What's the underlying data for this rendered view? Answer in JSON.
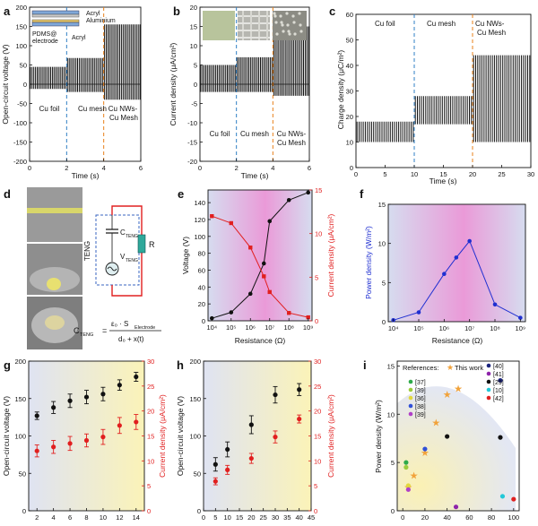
{
  "panel_letters": [
    "a",
    "b",
    "c",
    "d",
    "e",
    "f",
    "g",
    "h",
    "i"
  ],
  "colors": {
    "red": "#e11f1f",
    "blue": "#1f2fd1",
    "black": "#111111",
    "dash_blue": "#2f7fc4",
    "dash_orange": "#e8801a",
    "star": "#f1a23a"
  },
  "panel_a": {
    "ylabel": "Open-circuit voltage (V)",
    "xlabel": "Time (s)",
    "regions": [
      "Cu foil",
      "Cu mesh",
      "Cu NWs-",
      "Cu Mesh"
    ],
    "legend": [
      "Acryl",
      "Aluminium",
      "PDMS@",
      "electrode",
      "Acryl"
    ],
    "yticks": [
      "200",
      "150",
      "100",
      "50",
      "0",
      "-50",
      "-100",
      "-150",
      "-200"
    ],
    "xticks": [
      "0",
      "2",
      "4",
      "6"
    ]
  },
  "panel_b": {
    "ylabel": "Current density (μA/cm²)",
    "xlabel": "Time (s)",
    "regions": [
      "Cu foil",
      "Cu mesh",
      "Cu NWs-",
      "Cu Mesh"
    ],
    "yticks": [
      "20",
      "15",
      "10",
      "5",
      "0",
      "-5",
      "-10",
      "-15",
      "-20"
    ],
    "xticks": [
      "0",
      "2",
      "4",
      "6"
    ]
  },
  "panel_c": {
    "ylabel": "Charge density (μC/m²)",
    "xlabel": "Time (s)",
    "regions": [
      "Cu foil",
      "Cu mesh",
      "Cu NWs-",
      "Cu Mesh"
    ],
    "yticks": [
      "60",
      "50",
      "40",
      "30",
      "20",
      "10",
      "0"
    ],
    "xticks": [
      "0",
      "5",
      "10",
      "15",
      "20",
      "25",
      "30"
    ]
  },
  "panel_d": {
    "teng": "TENG",
    "c_label": "C",
    "c_sub": "TENG",
    "v_label": "V",
    "v_sub": "TENG",
    "r_label": "R",
    "eq_lhs": "C",
    "eq_lhs_sub": "TENG",
    "eq_eq": "=",
    "eq_num": "ε₀ · S",
    "eq_num_sub": "Electrode",
    "eq_den": "d₀ + x(t)"
  },
  "panel_e": {
    "xlabel": "Resistance (Ω)",
    "ylabel_left": "Voltage (V)",
    "ylabel_right": "Current density (μA/cm²)",
    "xticks": [
      "10⁴",
      "10⁵",
      "10⁶",
      "10⁷",
      "10⁸",
      "10⁹"
    ],
    "yticks_left": [
      "0",
      "20",
      "40",
      "60",
      "80",
      "100",
      "120",
      "140"
    ],
    "yticks_right": [
      "0",
      "5",
      "10",
      "15"
    ]
  },
  "panel_f": {
    "xlabel": "Resistance (Ω)",
    "ylabel": "Power density (W/m²)",
    "xticks": [
      "10⁴",
      "10⁵",
      "10⁶",
      "10⁷",
      "10⁸",
      "10⁹"
    ],
    "yticks": [
      "0",
      "5",
      "10",
      "15"
    ]
  },
  "panel_g": {
    "xlabel": "Frequency (Hz)",
    "ylabel_left": "Open-circuit voltage (V)",
    "ylabel_right": "Current density (μA/cm²)",
    "xticks": [
      "2",
      "4",
      "6",
      "8",
      "10",
      "12",
      "14"
    ],
    "yticks_left": [
      "0",
      "50",
      "100",
      "150",
      "200"
    ],
    "yticks_right": [
      "0",
      "5",
      "10",
      "15",
      "20",
      "25",
      "30"
    ]
  },
  "panel_h": {
    "xlabel": "Force (N)",
    "ylabel_left": "Open-circuit voltage (V)",
    "ylabel_right": "Current density (μA/cm²)",
    "xticks": [
      "0",
      "5",
      "10",
      "15",
      "20",
      "25",
      "30",
      "35",
      "40",
      "45"
    ],
    "yticks_left": [
      "0",
      "50",
      "100",
      "150",
      "200"
    ],
    "yticks_right": [
      "0",
      "5",
      "10",
      "15",
      "20",
      "25",
      "30"
    ]
  },
  "panel_i": {
    "xlabel": "Force (N)",
    "ylabel": "Power density (W/m²)",
    "xticks": [
      "0",
      "20",
      "40",
      "60",
      "80",
      "100"
    ],
    "yticks": [
      "0",
      "5",
      "10",
      "15"
    ],
    "refs_title": "References:",
    "this_work": "This work",
    "refs": [
      {
        "label": "[37]",
        "color": "#2eaa4a"
      },
      {
        "label": "[39]",
        "color": "#9ccc3c"
      },
      {
        "label": "[36]",
        "color": "#e2d83c"
      },
      {
        "label": "[38]",
        "color": "#3050d8"
      },
      {
        "label": "[39]",
        "color": "#b040c8"
      },
      {
        "label": "[40]",
        "color": "#1a237e"
      },
      {
        "label": "[41]",
        "color": "#8e24aa"
      },
      {
        "label": "[29]",
        "color": "#111111"
      },
      {
        "label": "[10]",
        "color": "#22c8d8"
      },
      {
        "label": "[42]",
        "color": "#e02020"
      }
    ]
  },
  "chart_data": [
    {
      "panel": "a",
      "type": "line",
      "xlabel": "Time (s)",
      "ylabel": "Open-circuit voltage (V)",
      "xlim": [
        0,
        6
      ],
      "ylim": [
        -200,
        200
      ],
      "series": [
        {
          "name": "Cu foil",
          "x_range": [
            0,
            2
          ],
          "amplitude": [
            45,
            -12
          ]
        },
        {
          "name": "Cu mesh",
          "x_range": [
            2,
            4
          ],
          "amplitude": [
            68,
            -20
          ]
        },
        {
          "name": "Cu NWs-Cu Mesh",
          "x_range": [
            4,
            6
          ],
          "amplitude": [
            155,
            -40
          ]
        }
      ]
    },
    {
      "panel": "b",
      "type": "line",
      "xlabel": "Time (s)",
      "ylabel": "Current density (μA/cm²)",
      "xlim": [
        0,
        6
      ],
      "ylim": [
        -20,
        20
      ],
      "series": [
        {
          "name": "Cu foil",
          "x_range": [
            0,
            2
          ],
          "amplitude": [
            5,
            -2
          ]
        },
        {
          "name": "Cu mesh",
          "x_range": [
            2,
            4
          ],
          "amplitude": [
            7,
            -2
          ]
        },
        {
          "name": "Cu NWs-Cu Mesh",
          "x_range": [
            4,
            6
          ],
          "amplitude": [
            15,
            -3
          ]
        }
      ]
    },
    {
      "panel": "c",
      "type": "line",
      "xlabel": "Time (s)",
      "ylabel": "Charge density (μC/m²)",
      "xlim": [
        0,
        30
      ],
      "ylim": [
        0,
        60
      ],
      "series": [
        {
          "name": "Cu foil",
          "x_range": [
            0,
            10
          ],
          "band": [
            10,
            18
          ]
        },
        {
          "name": "Cu mesh",
          "x_range": [
            10,
            20
          ],
          "band": [
            17,
            28
          ]
        },
        {
          "name": "Cu NWs-Cu Mesh",
          "x_range": [
            20,
            30
          ],
          "band": [
            10,
            44
          ]
        }
      ]
    },
    {
      "panel": "e",
      "type": "line",
      "xlabel": "Resistance (Ω)",
      "xscale": "log",
      "x": [
        10000,
        100000,
        1000000,
        5000000,
        10000000,
        100000000,
        1000000000
      ],
      "series": [
        {
          "name": "Voltage (V)",
          "axis": "left",
          "values": [
            3,
            10,
            32,
            68,
            118,
            143,
            152
          ]
        },
        {
          "name": "Current density (μA/cm²)",
          "axis": "right",
          "values": [
            12,
            11.2,
            8.4,
            5.1,
            3.3,
            0.9,
            0.4
          ]
        }
      ],
      "ylim_left": [
        0,
        155
      ],
      "ylim_right": [
        0,
        15
      ]
    },
    {
      "panel": "f",
      "type": "line",
      "xlabel": "Resistance (Ω)",
      "ylabel": "Power density (W/m²)",
      "xscale": "log",
      "x": [
        10000,
        100000,
        1000000,
        3000000,
        10000000,
        100000000,
        1000000000
      ],
      "series": [
        {
          "values": [
            0.2,
            1.2,
            6.1,
            8.2,
            10.3,
            2.2,
            0.5
          ]
        }
      ],
      "ylim": [
        0,
        15
      ]
    },
    {
      "panel": "g",
      "type": "scatter",
      "xlabel": "Frequency (Hz)",
      "x": [
        2,
        4,
        6,
        8,
        10,
        12,
        14
      ],
      "series": [
        {
          "name": "Open-circuit voltage (V)",
          "axis": "left",
          "values": [
            127,
            138,
            147,
            152,
            156,
            168,
            179
          ],
          "error": [
            5,
            8,
            9,
            9,
            9,
            7,
            6
          ]
        },
        {
          "name": "Current density (μA/cm²)",
          "axis": "right",
          "values": [
            12,
            12.8,
            13.5,
            14.1,
            14.8,
            17.1,
            17.8
          ],
          "error": [
            1.2,
            1.3,
            1.4,
            1.3,
            1.5,
            1.6,
            1.5
          ]
        }
      ],
      "ylim_left": [
        0,
        200
      ],
      "ylim_right": [
        0,
        30
      ]
    },
    {
      "panel": "h",
      "type": "scatter",
      "xlabel": "Force (N)",
      "x": [
        5,
        10,
        20,
        30,
        40
      ],
      "series": [
        {
          "name": "Open-circuit voltage (V)",
          "axis": "left",
          "values": [
            62,
            82,
            115,
            155,
            162
          ],
          "error": [
            9,
            10,
            12,
            11,
            8
          ]
        },
        {
          "name": "Current density (μA/cm²)",
          "axis": "right",
          "values": [
            5.9,
            8.2,
            10.5,
            14.8,
            18.4
          ],
          "error": [
            0.7,
            0.9,
            1.0,
            1.2,
            0.8
          ]
        }
      ],
      "xlim": [
        0,
        45
      ],
      "ylim_left": [
        0,
        200
      ],
      "ylim_right": [
        0,
        30
      ]
    },
    {
      "panel": "i",
      "type": "scatter",
      "xlabel": "Force (N)",
      "ylabel": "Power density (W/m²)",
      "xlim": [
        0,
        105
      ],
      "ylim": [
        0,
        15
      ],
      "series": [
        {
          "name": "This work",
          "marker": "star",
          "points": [
            [
              5,
              2.4
            ],
            [
              10,
              3.6
            ],
            [
              20,
              6.0
            ],
            [
              30,
              9.1
            ],
            [
              40,
              12.0
            ],
            [
              50,
              12.6
            ]
          ]
        },
        {
          "name": "[37]",
          "points": [
            [
              3,
              5.0
            ]
          ]
        },
        {
          "name": "[39]",
          "points": [
            [
              3,
              4.5
            ]
          ]
        },
        {
          "name": "[36]",
          "points": [
            [
              5,
              2.6
            ]
          ]
        },
        {
          "name": "[38]",
          "points": [
            [
              20,
              6.4
            ]
          ]
        },
        {
          "name": "[39]",
          "points": [
            [
              5,
              2.2
            ]
          ]
        },
        {
          "name": "[40]",
          "points": [
            [
              88,
              13.5
            ]
          ]
        },
        {
          "name": "[41]",
          "points": [
            [
              48,
              0.4
            ]
          ]
        },
        {
          "name": "[29]",
          "points": [
            [
              40,
              7.7
            ],
            [
              88,
              7.6
            ]
          ]
        },
        {
          "name": "[10]",
          "points": [
            [
              90,
              1.5
            ]
          ]
        },
        {
          "name": "[42]",
          "points": [
            [
              100,
              1.2
            ]
          ]
        }
      ]
    }
  ]
}
